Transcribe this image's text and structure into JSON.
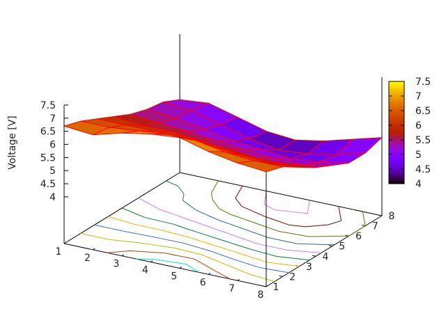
{
  "chart_data": {
    "type": "surface",
    "zlabel": "Voltage [V]",
    "x": [
      1,
      2,
      3,
      4,
      5,
      6,
      7,
      8
    ],
    "y": [
      1,
      2,
      3,
      4,
      5,
      6,
      7,
      8
    ],
    "xticks": [
      "1",
      "2",
      "3",
      "4",
      "5",
      "6",
      "7",
      "8"
    ],
    "yticks": [
      "1",
      "2",
      "3",
      "4",
      "5",
      "6",
      "7",
      "8"
    ],
    "zticks": [
      "4",
      "4.5",
      "5",
      "5.5",
      "6",
      "6.5",
      "7",
      "7.5"
    ],
    "zlim": [
      4,
      7.5
    ],
    "z": [
      [
        6.7,
        6.6,
        6.9,
        7.1,
        7.2,
        6.9,
        6.7,
        6.6
      ],
      [
        6.5,
        6.5,
        6.6,
        6.7,
        6.7,
        6.5,
        6.4,
        6.4
      ],
      [
        6.2,
        6.2,
        6.2,
        6.2,
        6.1,
        6.0,
        5.9,
        6.0
      ],
      [
        5.9,
        5.8,
        5.8,
        5.7,
        5.6,
        5.5,
        5.5,
        5.6
      ],
      [
        5.6,
        5.5,
        5.4,
        5.3,
        5.2,
        5.1,
        5.1,
        5.3
      ],
      [
        5.4,
        5.3,
        5.1,
        4.9,
        4.8,
        4.7,
        4.8,
        5.0
      ],
      [
        5.3,
        5.2,
        4.9,
        4.6,
        4.4,
        4.5,
        4.7,
        5.0
      ],
      [
        5.0,
        5.1,
        4.8,
        4.5,
        4.4,
        4.6,
        4.9,
        5.2
      ]
    ],
    "surface_grid_color": "#ff0000",
    "palette": "black-purple-red-orange-yellow",
    "colorbox": {
      "range": [
        4,
        7.5
      ],
      "ticks": [
        "4",
        "4.5",
        "5",
        "5.5",
        "6",
        "6.5",
        "7",
        "7.5"
      ],
      "placement": "right"
    },
    "contours": {
      "placement": "base",
      "levels": [
        4.5,
        4.75,
        5.0,
        5.25,
        5.5,
        5.75,
        6.0,
        6.25,
        6.5,
        6.75,
        7.0
      ],
      "colors": [
        "#e07ce0",
        "#7f0000",
        "#4d8000",
        "#336680",
        "#c080ff",
        "#007f3f",
        "#ffb000",
        "#3f6fe0",
        "#c0c000",
        "#c04000",
        "#00e0e0",
        "#c000ff",
        "#0080ff",
        "#00b000"
      ]
    }
  }
}
